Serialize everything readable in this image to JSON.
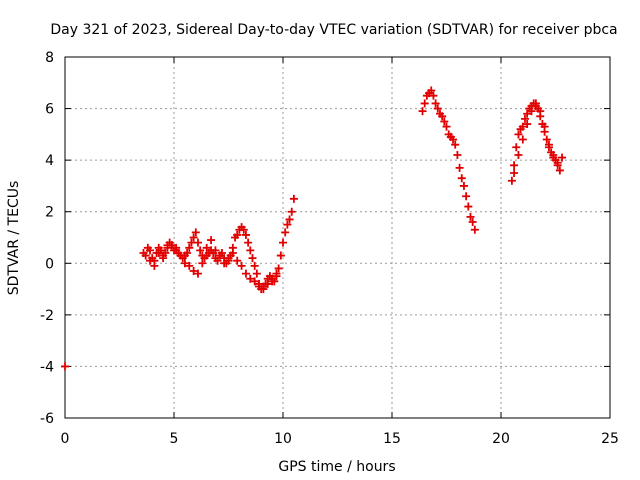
{
  "chart_data": {
    "type": "scatter",
    "title": "Day 321 of 2023, Sidereal Day-to-day VTEC variation (SDTVAR) for receiver pbca",
    "xlabel": "GPS time / hours",
    "ylabel": "SDTVAR / TECUs",
    "xlim": [
      0,
      25
    ],
    "ylim": [
      -6,
      8
    ],
    "xticks": [
      0,
      5,
      10,
      15,
      20,
      25
    ],
    "yticks": [
      -6,
      -4,
      -2,
      0,
      2,
      4,
      6,
      8
    ],
    "grid": true,
    "marker": "+",
    "color": "#e00000",
    "series": [
      {
        "x": [
          0.0,
          3.6,
          3.8,
          3.9,
          4.0,
          4.1,
          4.2,
          4.3,
          4.4,
          4.5,
          4.6,
          4.7,
          4.8,
          4.9,
          5.0,
          5.1,
          5.2,
          5.3,
          5.4,
          5.5,
          5.6,
          5.7,
          5.8,
          5.9,
          6.0,
          6.1,
          6.2,
          6.3,
          6.4,
          6.5,
          6.6,
          6.7,
          6.8,
          6.9,
          7.0,
          7.1,
          7.2,
          7.3,
          7.4,
          7.5,
          7.6,
          7.7,
          7.8,
          7.9,
          8.0,
          8.1,
          8.2,
          8.3,
          8.4,
          8.5,
          8.6,
          8.7,
          8.8,
          8.9,
          9.0,
          9.1,
          9.2,
          9.3,
          9.4,
          9.5,
          9.6,
          9.7,
          9.8,
          9.9,
          10.0,
          10.1,
          10.2,
          10.3,
          10.4,
          10.5
        ],
        "y": [
          -4.0,
          0.4,
          0.6,
          0.5,
          0.2,
          0.1,
          0.4,
          0.6,
          0.5,
          0.3,
          0.4,
          0.7,
          0.8,
          0.7,
          0.5,
          0.6,
          0.4,
          0.3,
          0.2,
          0.3,
          0.4,
          0.6,
          0.8,
          1.0,
          1.2,
          0.8,
          0.5,
          0.3,
          0.2,
          0.3,
          0.4,
          0.5,
          0.4,
          0.2,
          0.1,
          0.3,
          0.4,
          0.2,
          0.0,
          0.1,
          0.3,
          0.6,
          1.0,
          1.1,
          1.3,
          1.4,
          1.3,
          1.1,
          0.8,
          0.5,
          0.2,
          -0.1,
          -0.4,
          -0.8,
          -1.0,
          -0.9,
          -0.8,
          -0.6,
          -0.5,
          -0.6,
          -0.7,
          -0.5,
          -0.2,
          0.3,
          0.8,
          1.2,
          1.5,
          1.7,
          2.0,
          2.5
        ]
      },
      {
        "x": [
          3.7,
          3.9,
          4.1,
          4.3,
          4.5,
          4.7,
          4.9,
          5.1,
          5.3,
          5.5,
          5.7,
          5.9,
          6.1,
          6.3,
          6.5,
          6.7,
          6.9,
          7.1,
          7.3,
          7.5,
          7.7,
          7.9,
          8.1,
          8.3,
          8.5,
          8.7,
          8.9,
          9.1,
          9.3,
          9.5,
          9.7
        ],
        "y": [
          0.3,
          0.1,
          -0.1,
          0.4,
          0.2,
          0.6,
          0.7,
          0.5,
          0.3,
          0.0,
          -0.1,
          -0.3,
          -0.4,
          0.0,
          0.6,
          0.9,
          0.5,
          0.3,
          0.0,
          0.2,
          0.4,
          0.1,
          -0.1,
          -0.4,
          -0.6,
          -0.7,
          -0.9,
          -1.0,
          -0.8,
          -0.7,
          -0.4
        ]
      },
      {
        "x": [
          16.4,
          16.5,
          16.6,
          16.7,
          16.8,
          16.9,
          17.0,
          17.1,
          17.2,
          17.3,
          17.4,
          17.5,
          17.6,
          17.7,
          17.8,
          17.9,
          18.0,
          18.1,
          18.2,
          18.3,
          18.4,
          18.5,
          18.6,
          18.7,
          18.8
        ],
        "y": [
          5.9,
          6.2,
          6.5,
          6.6,
          6.7,
          6.5,
          6.2,
          6.0,
          5.8,
          5.7,
          5.5,
          5.3,
          5.0,
          4.9,
          4.8,
          4.6,
          4.2,
          3.7,
          3.3,
          3.0,
          2.6,
          2.2,
          1.8,
          1.6,
          1.3
        ]
      },
      {
        "x": [
          20.5,
          20.6,
          20.7,
          20.8,
          20.9,
          21.0,
          21.1,
          21.2,
          21.3,
          21.4,
          21.5,
          21.6,
          21.7,
          21.8,
          21.9,
          22.0,
          22.1,
          22.2,
          22.3,
          22.4,
          22.5,
          22.6,
          22.7,
          22.8
        ],
        "y": [
          3.2,
          3.8,
          4.5,
          5.0,
          5.2,
          5.3,
          5.6,
          5.8,
          6.0,
          6.1,
          6.2,
          6.2,
          6.0,
          5.7,
          5.4,
          5.1,
          4.8,
          4.5,
          4.3,
          4.2,
          4.0,
          3.8,
          3.6,
          4.1
        ]
      },
      {
        "x": [
          20.6,
          20.8,
          21.0,
          21.2,
          21.4,
          21.6,
          21.8,
          22.0,
          22.2,
          22.4,
          22.6
        ],
        "y": [
          3.5,
          4.2,
          4.8,
          5.4,
          5.9,
          6.1,
          5.9,
          5.3,
          4.6,
          4.1,
          3.9
        ]
      }
    ]
  }
}
